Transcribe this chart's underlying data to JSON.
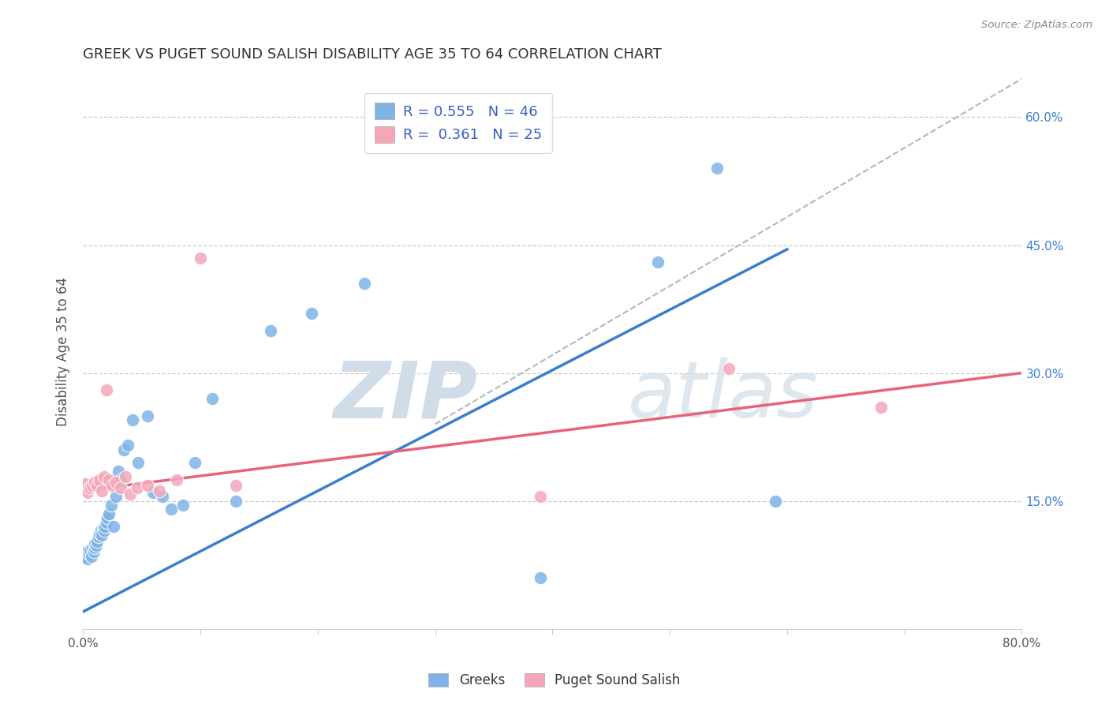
{
  "title": "GREEK VS PUGET SOUND SALISH DISABILITY AGE 35 TO 64 CORRELATION CHART",
  "source": "Source: ZipAtlas.com",
  "ylabel": "Disability Age 35 to 64",
  "xlim": [
    0.0,
    0.8
  ],
  "ylim": [
    0.0,
    0.65
  ],
  "ytick_positions": [
    0.15,
    0.3,
    0.45,
    0.6
  ],
  "ytick_labels": [
    "15.0%",
    "30.0%",
    "45.0%",
    "60.0%"
  ],
  "blue_R": 0.555,
  "blue_N": 46,
  "pink_R": 0.361,
  "pink_N": 25,
  "blue_color": "#7fb3e8",
  "pink_color": "#f4a7b9",
  "blue_line_color": "#3a7ecf",
  "pink_line_color": "#e8637a",
  "gray_dash_color": "#b0b8c0",
  "watermark_color": "#d0dce8",
  "legend_text_color": "#3a5fbf",
  "title_color": "#333333",
  "grid_color": "#cccccc",
  "blue_points_x": [
    0.002,
    0.003,
    0.004,
    0.005,
    0.006,
    0.007,
    0.008,
    0.009,
    0.01,
    0.01,
    0.011,
    0.012,
    0.013,
    0.014,
    0.015,
    0.016,
    0.017,
    0.018,
    0.019,
    0.02,
    0.021,
    0.022,
    0.024,
    0.026,
    0.028,
    0.03,
    0.032,
    0.035,
    0.038,
    0.042,
    0.047,
    0.055,
    0.06,
    0.068,
    0.075,
    0.085,
    0.095,
    0.11,
    0.13,
    0.16,
    0.195,
    0.24,
    0.39,
    0.49,
    0.54,
    0.59
  ],
  "blue_points_y": [
    0.085,
    0.09,
    0.082,
    0.088,
    0.092,
    0.085,
    0.095,
    0.09,
    0.095,
    0.1,
    0.098,
    0.102,
    0.108,
    0.112,
    0.115,
    0.11,
    0.118,
    0.115,
    0.12,
    0.125,
    0.13,
    0.135,
    0.145,
    0.12,
    0.155,
    0.185,
    0.175,
    0.21,
    0.215,
    0.245,
    0.195,
    0.25,
    0.16,
    0.155,
    0.14,
    0.145,
    0.195,
    0.27,
    0.15,
    0.35,
    0.37,
    0.405,
    0.06,
    0.43,
    0.54,
    0.15
  ],
  "pink_points_x": [
    0.002,
    0.004,
    0.006,
    0.008,
    0.01,
    0.012,
    0.014,
    0.016,
    0.018,
    0.02,
    0.022,
    0.025,
    0.028,
    0.032,
    0.036,
    0.04,
    0.046,
    0.055,
    0.065,
    0.08,
    0.1,
    0.13,
    0.39,
    0.55,
    0.68
  ],
  "pink_points_y": [
    0.17,
    0.16,
    0.165,
    0.168,
    0.172,
    0.168,
    0.175,
    0.162,
    0.178,
    0.28,
    0.175,
    0.168,
    0.172,
    0.165,
    0.178,
    0.158,
    0.165,
    0.168,
    0.162,
    0.175,
    0.435,
    0.168,
    0.155,
    0.305,
    0.26
  ],
  "blue_trend_x": [
    0.0,
    0.6
  ],
  "blue_trend_y": [
    0.02,
    0.445
  ],
  "pink_trend_x": [
    0.0,
    0.8
  ],
  "pink_trend_y": [
    0.162,
    0.3
  ],
  "diag_line_x": [
    0.3,
    0.8
  ],
  "diag_line_y": [
    0.24,
    0.645
  ]
}
